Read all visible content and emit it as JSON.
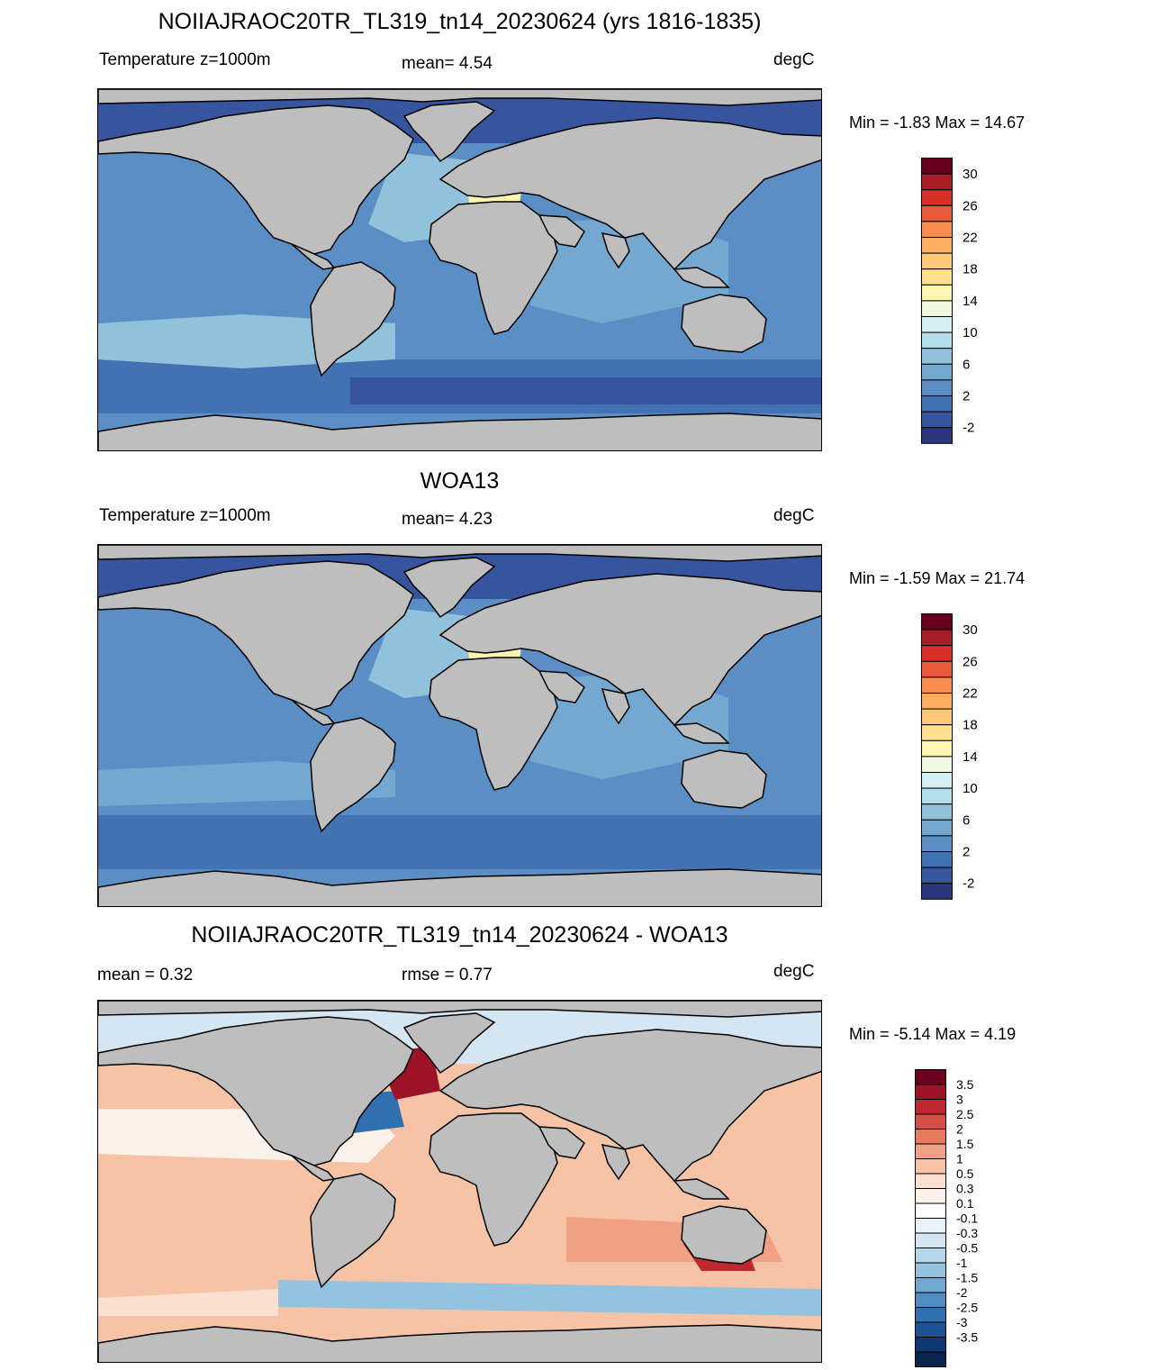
{
  "panels": [
    {
      "title": "NOIIAJRAOC20TR_TL319_tn14_20230624 (yrs 1816-1835)",
      "left_text": "Temperature z=1000m",
      "center_text": "mean=   4.54",
      "right_text": "degC",
      "minmax_text": "Min =  -1.83 Max =  14.67",
      "colorbar": "temp",
      "field": "model"
    },
    {
      "title": "WOA13",
      "left_text": "Temperature z=1000m",
      "center_text": "mean=   4.23",
      "right_text": "degC",
      "minmax_text": "Min =  -1.59 Max =  21.74",
      "colorbar": "temp",
      "field": "obs"
    },
    {
      "title": "NOIIAJRAOC20TR_TL319_tn14_20230624 - WOA13",
      "left_text": "mean =   0.32",
      "center_text": "rmse =   0.77",
      "right_text": "degC",
      "minmax_text": "Min =  -5.14 Max =   4.19",
      "colorbar": "diff",
      "field": "diff"
    }
  ],
  "colorbars": {
    "temp": {
      "colors_top_to_bottom": [
        "#67001f",
        "#a81d26",
        "#d73027",
        "#e95a3c",
        "#f88d52",
        "#fdae61",
        "#fdc978",
        "#fee090",
        "#fff4b0",
        "#f0f8e0",
        "#d5eef3",
        "#b3dde9",
        "#92c1dc",
        "#74a8d0",
        "#5b8ec4",
        "#4372b3",
        "#36559e",
        "#2d347a"
      ],
      "labels_top_to_bottom": [
        "30",
        "26",
        "22",
        "18",
        "14",
        "10",
        "6",
        "2",
        "-2"
      ]
    },
    "diff": {
      "colors_top_to_bottom": [
        "#6b0020",
        "#9c1328",
        "#c0282f",
        "#d45044",
        "#e57a5e",
        "#f0a185",
        "#f7c3a7",
        "#fbe0cf",
        "#fdf2ea",
        "#ffffff",
        "#e9f2f8",
        "#d3e6f1",
        "#b7d6e9",
        "#94c3df",
        "#6ea9d2",
        "#4f8dc2",
        "#3170b0",
        "#1c5394",
        "#0d3872",
        "#08244f"
      ],
      "labels_top_to_bottom": [
        "3.5",
        "3",
        "2.5",
        "2",
        "1.5",
        "1",
        "0.5",
        "0.3",
        "0.1",
        "-0.1",
        "-0.3",
        "-0.5",
        "-1",
        "-1.5",
        "-2",
        "-2.5",
        "-3",
        "-3.5"
      ]
    }
  },
  "map_colors": {
    "land": "#bebebe",
    "coastline": "#000000"
  }
}
